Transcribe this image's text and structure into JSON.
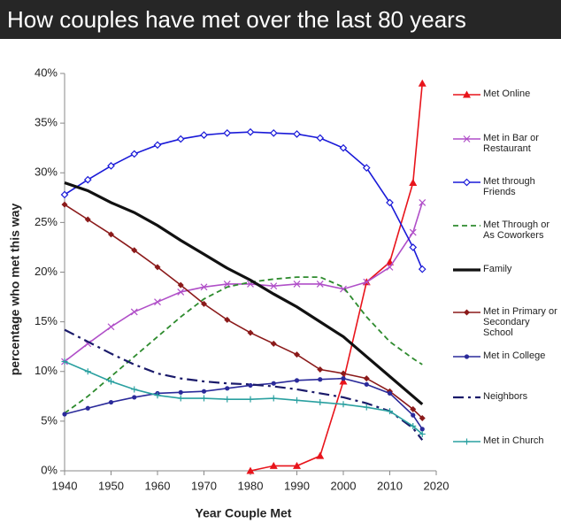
{
  "chart_data": {
    "type": "line",
    "title": "How couples have met over the last 80 years",
    "x_label": "Year Couple Met",
    "y_label": "percentage who met this way",
    "xlim": [
      1940,
      2020
    ],
    "xticks": [
      1940,
      1950,
      1960,
      1970,
      1980,
      1990,
      2000,
      2010,
      2020
    ],
    "ylim": [
      0,
      40
    ],
    "yticks": [
      {
        "value": 0,
        "label": "0%"
      },
      {
        "value": 5,
        "label": "5%"
      },
      {
        "value": 10,
        "label": "10%"
      },
      {
        "value": 15,
        "label": "15%"
      },
      {
        "value": 20,
        "label": "20%"
      },
      {
        "value": 25,
        "label": "25%"
      },
      {
        "value": 30,
        "label": "30%"
      },
      {
        "value": 35,
        "label": "35%"
      },
      {
        "value": 40,
        "label": "40%"
      }
    ],
    "x": [
      1940,
      1945,
      1950,
      1955,
      1960,
      1965,
      1970,
      1975,
      1980,
      1985,
      1990,
      1995,
      2000,
      2005,
      2010,
      2015,
      2017
    ],
    "series": [
      {
        "name": "Met Online",
        "color": "#e8141b",
        "marker": "triangle",
        "dash": "solid",
        "values": [
          null,
          null,
          null,
          null,
          null,
          null,
          null,
          null,
          0,
          0.5,
          0.5,
          1.5,
          9,
          19,
          21,
          29,
          39
        ]
      },
      {
        "name": "Met in Bar or Restaurant",
        "color": "#b04fc8",
        "marker": "x",
        "dash": "solid",
        "values": [
          11,
          12.8,
          14.5,
          16,
          17,
          18,
          18.5,
          18.8,
          18.8,
          18.6,
          18.8,
          18.8,
          18.3,
          19,
          20.5,
          24,
          27
        ]
      },
      {
        "name": "Met through Friends",
        "color": "#1a1ad8",
        "marker": "diamond-open",
        "dash": "solid",
        "values": [
          27.8,
          29.3,
          30.7,
          31.9,
          32.8,
          33.4,
          33.8,
          34,
          34.1,
          34,
          33.9,
          33.5,
          32.5,
          30.5,
          27,
          22.5,
          20.3
        ]
      },
      {
        "name": "Met Through or As Coworkers",
        "color": "#2e8b2e",
        "marker": "none",
        "dash": "dash",
        "values": [
          5.8,
          7.5,
          9.5,
          11.5,
          13.5,
          15.5,
          17.3,
          18.5,
          19,
          19.3,
          19.5,
          19.5,
          18.5,
          15.5,
          13,
          11.3,
          10.7
        ]
      },
      {
        "name": "Family",
        "color": "#111111",
        "marker": "none",
        "dash": "thick",
        "values": [
          29,
          28.2,
          27,
          26,
          24.7,
          23.2,
          21.8,
          20.4,
          19.2,
          17.8,
          16.5,
          15,
          13.5,
          11.5,
          9.5,
          7.5,
          6.7
        ]
      },
      {
        "name": "Met in Primary or Secondary School",
        "color": "#8b1a1a",
        "marker": "diamond",
        "dash": "solid",
        "values": [
          26.8,
          25.3,
          23.8,
          22.2,
          20.5,
          18.7,
          16.8,
          15.2,
          13.9,
          12.8,
          11.7,
          10.2,
          9.8,
          9.3,
          8,
          6.2,
          5.3
        ]
      },
      {
        "name": "Met in College",
        "color": "#2a2a9a",
        "marker": "circle",
        "dash": "solid",
        "values": [
          5.7,
          6.3,
          6.9,
          7.4,
          7.8,
          7.9,
          8,
          8.3,
          8.6,
          8.8,
          9.1,
          9.2,
          9.3,
          8.7,
          7.8,
          5.6,
          4.2
        ]
      },
      {
        "name": "Neighbors",
        "color": "#1a1a6a",
        "marker": "none",
        "dash": "dashdot",
        "values": [
          14.2,
          13,
          11.8,
          10.7,
          9.8,
          9.3,
          9,
          8.8,
          8.7,
          8.5,
          8.2,
          7.8,
          7.4,
          6.8,
          6,
          4.3,
          3.1
        ]
      },
      {
        "name": "Met in Church",
        "color": "#2aa0a0",
        "marker": "plus",
        "dash": "solid",
        "values": [
          11,
          10,
          9,
          8.2,
          7.6,
          7.3,
          7.3,
          7.2,
          7.2,
          7.3,
          7.1,
          6.9,
          6.7,
          6.4,
          6,
          4.5,
          3.7
        ]
      }
    ]
  }
}
